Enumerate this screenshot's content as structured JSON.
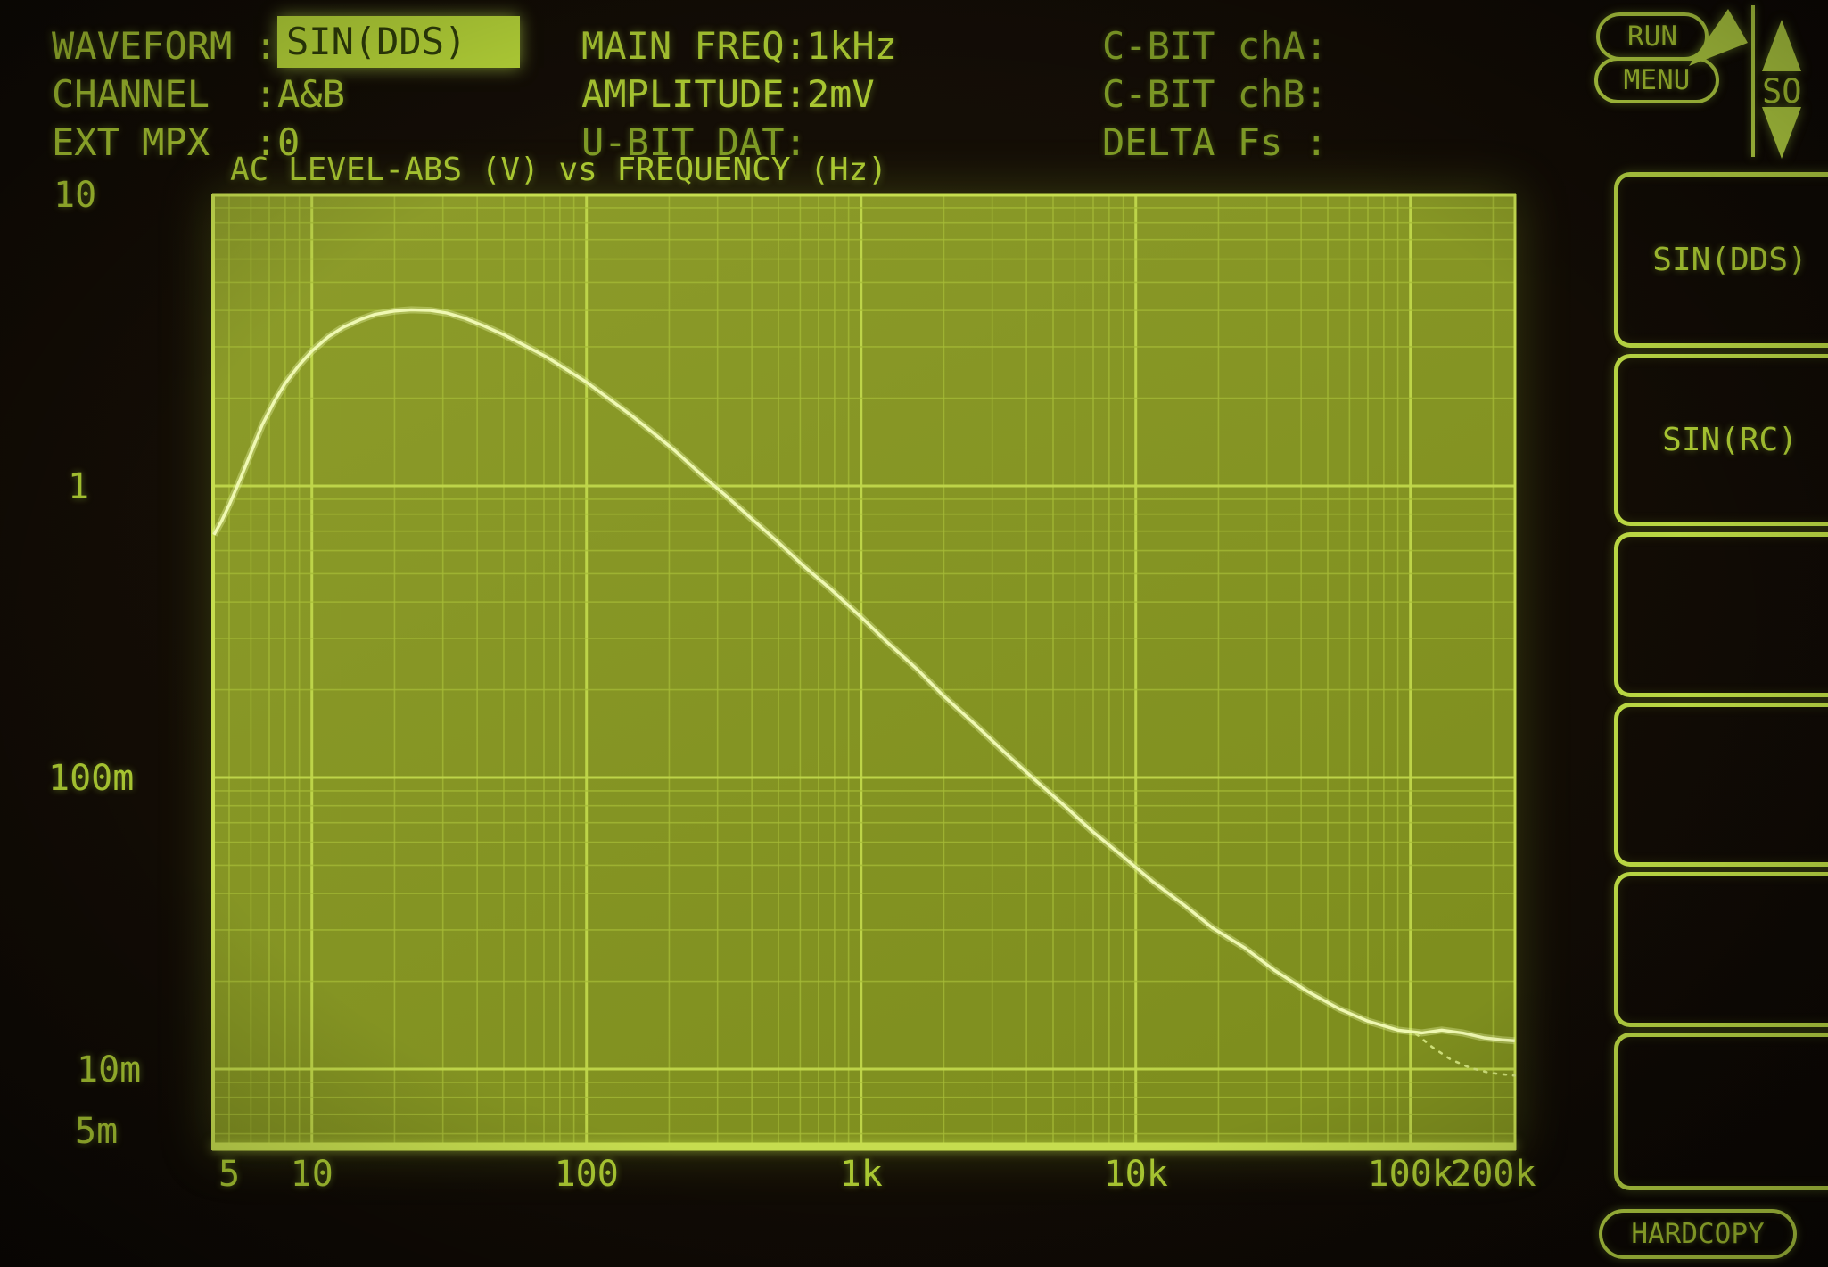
{
  "device": {
    "kind": "audio-analyzer-crt-screen"
  },
  "colors": {
    "background": "#120c05",
    "text_bright": "#aac832",
    "text_dim": "#7e9a26",
    "panel_line": "#b9d643",
    "highlight_bg": "#b9d839",
    "highlight_text": "#2f3d0a",
    "plot_bg": "#87961f",
    "grid_minor": "#a6bb37",
    "grid_major": "#c0d74b",
    "frame": "#c6dd4f",
    "curve": "#eff8b2",
    "curve_secondary": "#cfe07a"
  },
  "header": {
    "rows_left": [
      {
        "label": "WAVEFORM :",
        "value": "SIN(DDS)",
        "highlighted": true,
        "dim": false
      },
      {
        "label": "CHANNEL  :",
        "value": "A&B",
        "highlighted": false,
        "dim": false
      },
      {
        "label": "EXT MPX  :",
        "value": "0",
        "highlighted": false,
        "dim": false
      }
    ],
    "rows_mid": [
      {
        "text": "MAIN FREQ:1kHz",
        "dim": false
      },
      {
        "text": "AMPLITUDE:2mV",
        "dim": false
      },
      {
        "text": "U-BIT DAT:",
        "dim": true
      }
    ],
    "rows_right": [
      {
        "text": "C-BIT chA:",
        "dim": true
      },
      {
        "text": "C-BIT chB:",
        "dim": true
      },
      {
        "text": "DELTA Fs :",
        "dim": true
      }
    ]
  },
  "right_panel": {
    "run_label": "RUN",
    "menu_label": "MENU",
    "scroll_label": "SO",
    "softkeys": [
      {
        "label": "SIN(DDS)"
      },
      {
        "label": "SIN(RC)"
      },
      {
        "label": ""
      },
      {
        "label": ""
      },
      {
        "label": ""
      },
      {
        "label": ""
      }
    ],
    "hardcopy_label": "HARDCOPY"
  },
  "chart_data": {
    "type": "line",
    "title": "AC LEVEL-ABS (V) vs FREQUENCY (Hz)",
    "xlabel": "FREQUENCY (Hz)",
    "ylabel": "AC LEVEL-ABS (V)",
    "x_axis": {
      "scale": "log",
      "min": 4.4,
      "max": 242000,
      "tick_values": [
        5,
        10,
        100,
        1000,
        10000,
        100000,
        200000
      ],
      "tick_labels": [
        "5",
        "10",
        "100",
        "1k",
        "10k",
        "100k",
        "200k"
      ]
    },
    "y_axis": {
      "scale": "log",
      "min": 0.00527,
      "max": 10,
      "tick_values": [
        10,
        1,
        0.1,
        0.01,
        0.005
      ],
      "tick_labels": [
        "10",
        "1",
        "100m",
        "10m",
        "5m"
      ]
    },
    "grid": "log-log, minor decade lines on",
    "legend": "none",
    "series": [
      {
        "name": "ac-level-response",
        "style": "solid",
        "points": [
          [
            4.4,
            0.68
          ],
          [
            4.7,
            0.76
          ],
          [
            5,
            0.86
          ],
          [
            5.5,
            1.06
          ],
          [
            6,
            1.3
          ],
          [
            6.6,
            1.62
          ],
          [
            7.3,
            1.95
          ],
          [
            8,
            2.25
          ],
          [
            9,
            2.6
          ],
          [
            10,
            2.9
          ],
          [
            11.5,
            3.25
          ],
          [
            13,
            3.5
          ],
          [
            15,
            3.72
          ],
          [
            17,
            3.88
          ],
          [
            20,
            3.98
          ],
          [
            23,
            4.02
          ],
          [
            27,
            4.0
          ],
          [
            31,
            3.92
          ],
          [
            36,
            3.76
          ],
          [
            42,
            3.55
          ],
          [
            50,
            3.3
          ],
          [
            60,
            3.02
          ],
          [
            72,
            2.76
          ],
          [
            85,
            2.5
          ],
          [
            100,
            2.27
          ],
          [
            120,
            2.0
          ],
          [
            145,
            1.75
          ],
          [
            175,
            1.52
          ],
          [
            210,
            1.32
          ],
          [
            260,
            1.1
          ],
          [
            320,
            0.93
          ],
          [
            400,
            0.77
          ],
          [
            500,
            0.64
          ],
          [
            620,
            0.53
          ],
          [
            780,
            0.44
          ],
          [
            1000,
            0.355
          ],
          [
            1250,
            0.29
          ],
          [
            1600,
            0.235
          ],
          [
            2000,
            0.19
          ],
          [
            2600,
            0.152
          ],
          [
            3300,
            0.123
          ],
          [
            4200,
            0.1
          ],
          [
            5500,
            0.08
          ],
          [
            7000,
            0.065
          ],
          [
            9000,
            0.0535
          ],
          [
            11500,
            0.044
          ],
          [
            15000,
            0.0365
          ],
          [
            19000,
            0.0305
          ],
          [
            25000,
            0.026
          ],
          [
            32000,
            0.0218
          ],
          [
            42000,
            0.0185
          ],
          [
            55000,
            0.0161
          ],
          [
            70000,
            0.0146
          ],
          [
            90000,
            0.0136
          ],
          [
            110000,
            0.0133
          ],
          [
            130000,
            0.0136
          ],
          [
            155000,
            0.0133
          ],
          [
            185000,
            0.0128
          ],
          [
            215000,
            0.0126
          ],
          [
            240000,
            0.0125
          ]
        ]
      },
      {
        "name": "secondary-trace-dotted",
        "style": "dotted",
        "points": [
          [
            105000,
            0.0132
          ],
          [
            120000,
            0.0119
          ],
          [
            140000,
            0.0108
          ],
          [
            165000,
            0.0101
          ],
          [
            195000,
            0.0097
          ],
          [
            240000,
            0.0095
          ]
        ]
      }
    ]
  }
}
